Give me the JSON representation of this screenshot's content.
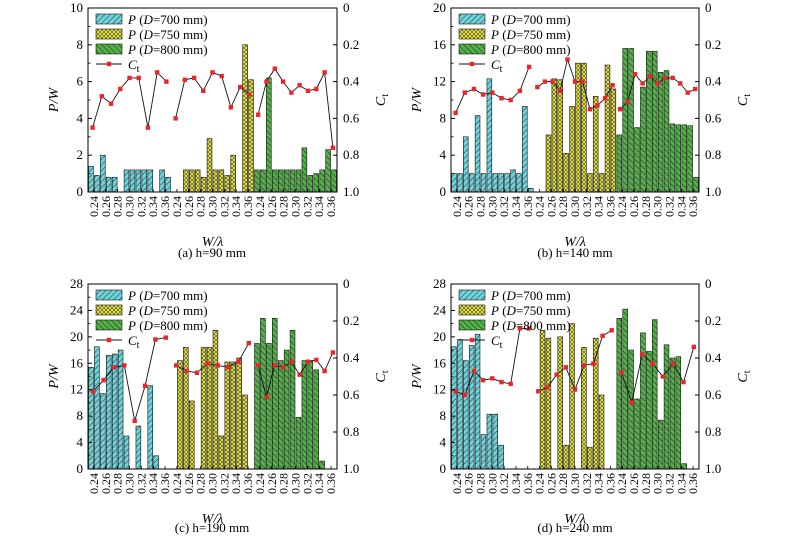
{
  "chart_data": [
    {
      "type": "bar",
      "caption": "(a) h=90 mm",
      "xlabel": "W/λ",
      "ylabel": "P/W",
      "y2label": "C_t",
      "ylim": [
        0,
        10
      ],
      "yticks": [
        0,
        2,
        4,
        6,
        8,
        10
      ],
      "y2lim": [
        0,
        1.0
      ],
      "y2inverted": true,
      "y2ticks": [
        "0",
        "0.2",
        "0.4",
        "0.6",
        "0.8",
        "1.0"
      ],
      "categories": [
        "0.24",
        "0.26",
        "0.28",
        "0.30",
        "0.32",
        "0.34",
        "0.36"
      ],
      "legend": [
        "P (D=700 mm)",
        "P (D=750 mm)",
        "P (D=800 mm)",
        "C_t"
      ],
      "series": [
        {
          "name": "P (D=700 mm)",
          "bars": [
            [
              1.4,
              0.9
            ],
            [
              2.0,
              0.8
            ],
            [
              0.8,
              0
            ],
            [
              1.2,
              1.2
            ],
            [
              1.2,
              1.2
            ],
            [
              1.2,
              0
            ],
            [
              1.2,
              0.8
            ]
          ]
        },
        {
          "name": "P (D=750 mm)",
          "bars": [
            [
              0,
              0
            ],
            [
              1.2,
              1.2
            ],
            [
              1.2,
              0.8
            ],
            [
              2.9,
              1.2
            ],
            [
              1.2,
              0.9
            ],
            [
              2.0,
              0
            ],
            [
              8.0,
              6.1
            ]
          ]
        },
        {
          "name": "P (D=800 mm)",
          "bars": [
            [
              1.2,
              1.2
            ],
            [
              6.2,
              1.2
            ],
            [
              1.2,
              1.2
            ],
            [
              1.2,
              1.2
            ],
            [
              2.4,
              0.9
            ],
            [
              1.0,
              1.2
            ],
            [
              2.3,
              1.2
            ]
          ]
        }
      ],
      "ct": [
        [
          0.65,
          0.48,
          0.52,
          0.44,
          0.38,
          0.38,
          0.65,
          0.35,
          0.4
        ],
        [
          0.6,
          0.39,
          0.38,
          0.45,
          0.35,
          0.37,
          0.54,
          0.43,
          0.47
        ],
        [
          0.58,
          0.4,
          0.33,
          0.4,
          0.46,
          0.42,
          0.45,
          0.44,
          0.35,
          0.76
        ]
      ]
    },
    {
      "type": "bar",
      "caption": "(b) h=140 mm",
      "xlabel": "W/λ",
      "ylabel": "P/W",
      "y2label": "C_t",
      "ylim": [
        0,
        20
      ],
      "yticks": [
        0,
        4,
        8,
        12,
        16,
        20
      ],
      "y2lim": [
        0,
        1.0
      ],
      "y2inverted": true,
      "y2ticks": [
        "0",
        "0.2",
        "0.4",
        "0.6",
        "0.8",
        "1.0"
      ],
      "categories": [
        "0.24",
        "0.26",
        "0.28",
        "0.30",
        "0.32",
        "0.34",
        "0.36"
      ],
      "legend": [
        "P (D=700 mm)",
        "P (D=750 mm)",
        "P (D=800 mm)",
        "C_t"
      ],
      "series": [
        {
          "name": "P (D=700 mm)",
          "bars": [
            [
              2.0,
              2.0
            ],
            [
              6.0,
              2.0
            ],
            [
              8.3,
              2.0
            ],
            [
              12.3,
              2.0
            ],
            [
              2.0,
              2.0
            ],
            [
              2.4,
              2.0
            ],
            [
              9.3,
              0.4
            ]
          ]
        },
        {
          "name": "P (D=750 mm)",
          "bars": [
            [
              0,
              0
            ],
            [
              6.2,
              12.3
            ],
            [
              12.2,
              4.2
            ],
            [
              9.3,
              14.0
            ],
            [
              14.0,
              2.0
            ],
            [
              10.4,
              2.0
            ],
            [
              13.8,
              11.2
            ]
          ]
        },
        {
          "name": "P (D=800 mm)",
          "bars": [
            [
              6.2,
              15.6
            ],
            [
              15.6,
              7.0
            ],
            [
              11.4,
              15.3
            ],
            [
              15.3,
              13.0
            ],
            [
              13.2,
              7.4
            ],
            [
              7.3,
              7.3
            ],
            [
              7.2,
              1.6
            ]
          ]
        }
      ],
      "ct": [
        [
          0.57,
          0.46,
          0.44,
          0.47,
          0.46,
          0.49,
          0.5,
          0.45,
          0.32
        ],
        [
          0.43,
          0.4,
          0.4,
          0.45,
          0.28,
          0.4,
          0.4,
          0.55,
          0.53,
          0.49,
          0.42
        ],
        [
          0.55,
          0.51,
          0.36,
          0.41,
          0.37,
          0.41,
          0.38,
          0.38,
          0.41,
          0.46,
          0.44
        ]
      ]
    },
    {
      "type": "bar",
      "caption": "(c) h=190 mm",
      "xlabel": "W/λ",
      "ylabel": "P/W",
      "y2label": "C_t",
      "ylim": [
        0,
        28
      ],
      "yticks": [
        0,
        4,
        8,
        12,
        16,
        20,
        24,
        28
      ],
      "y2lim": [
        0,
        1.0
      ],
      "y2inverted": true,
      "y2ticks": [
        "0",
        "0.2",
        "0.4",
        "0.6",
        "0.8",
        "1.0"
      ],
      "categories": [
        "0.24",
        "0.26",
        "0.28",
        "0.30",
        "0.32",
        "0.34",
        "0.36"
      ],
      "legend": [
        "P (D=700 mm)",
        "P (D=750 mm)",
        "P (D=800 mm)",
        "C_t"
      ],
      "series": [
        {
          "name": "P (D=700 mm)",
          "bars": [
            [
              15.4,
              18.5
            ],
            [
              11.4,
              17.2
            ],
            [
              17.4,
              18.0
            ],
            [
              5.0,
              0
            ],
            [
              6.5,
              0
            ],
            [
              12.6,
              2.0
            ],
            [
              0,
              0
            ]
          ]
        },
        {
          "name": "P (D=750 mm)",
          "bars": [
            [
              0,
              16.4
            ],
            [
              18.4,
              10.3
            ],
            [
              0,
              18.4
            ],
            [
              18.4,
              21.0
            ],
            [
              5.0,
              16.2
            ],
            [
              16.2,
              16.8
            ],
            [
              11.2,
              0
            ]
          ]
        },
        {
          "name": "P (D=800 mm)",
          "bars": [
            [
              19.0,
              22.8
            ],
            [
              19.0,
              22.8
            ],
            [
              16.4,
              18.0
            ],
            [
              21.0,
              7.8
            ],
            [
              16.4,
              16.4
            ],
            [
              15.0,
              1.2
            ],
            [
              0,
              0
            ]
          ]
        }
      ],
      "ct": [
        [
          0.58,
          0.52,
          0.45,
          0.44,
          0.74,
          0.55,
          0.3,
          0.29
        ],
        [
          0.44,
          0.47,
          0.48,
          0.43,
          0.44,
          0.45,
          0.42,
          0.32
        ],
        [
          0.44,
          0.61,
          0.44,
          0.45,
          0.42,
          0.49,
          0.42,
          0.41,
          0.47,
          0.37
        ]
      ]
    },
    {
      "type": "bar",
      "caption": "(d) h=240 mm",
      "xlabel": "W/λ",
      "ylabel": "P/W",
      "y2label": "C_t",
      "ylim": [
        0,
        28
      ],
      "yticks": [
        0,
        4,
        8,
        12,
        16,
        20,
        24,
        28
      ],
      "y2lim": [
        0,
        1.0
      ],
      "y2inverted": true,
      "y2ticks": [
        "0",
        "0.2",
        "0.4",
        "0.6",
        "0.8",
        "1.0"
      ],
      "categories": [
        "0.24",
        "0.26",
        "0.28",
        "0.30",
        "0.32",
        "0.34",
        "0.36"
      ],
      "legend": [
        "P (D=700 mm)",
        "P (D=750 mm)",
        "P (D=800 mm)",
        "C_t"
      ],
      "series": [
        {
          "name": "P (D=700 mm)",
          "bars": [
            [
              18.5,
              19.6
            ],
            [
              16.4,
              18.7
            ],
            [
              20.4,
              5.2
            ],
            [
              8.3,
              8.3
            ],
            [
              3.6,
              0
            ],
            [
              0,
              0
            ],
            [
              0,
              0
            ]
          ]
        },
        {
          "name": "P (D=750 mm)",
          "bars": [
            [
              0,
              21.0
            ],
            [
              19.8,
              0
            ],
            [
              20.0,
              3.6
            ],
            [
              22.0,
              0
            ],
            [
              18.4,
              3.3
            ],
            [
              19.8,
              11.2
            ],
            [
              0,
              0
            ]
          ]
        },
        {
          "name": "P (D=800 mm)",
          "bars": [
            [
              22.8,
              24.2
            ],
            [
              18.0,
              10.6
            ],
            [
              20.6,
              17.8
            ],
            [
              22.6,
              7.4
            ],
            [
              18.8,
              16.8
            ],
            [
              17.0,
              0.8
            ],
            [
              0,
              0
            ]
          ]
        }
      ],
      "ct": [
        [
          0.58,
          0.6,
          0.47,
          0.52,
          0.51,
          0.53,
          0.54,
          0.24,
          0.24
        ],
        [
          0.58,
          0.56,
          0.49,
          0.45,
          0.57,
          0.44,
          0.43,
          0.28,
          0.25
        ],
        [
          0.48,
          0.64,
          0.38,
          0.43,
          0.5,
          0.43,
          0.53,
          0.34
        ]
      ]
    }
  ],
  "colors": {
    "d700": "#6fd3d8",
    "d750": "#e6e34a",
    "d800": "#3f9b3a",
    "ct": "#e8262b"
  }
}
